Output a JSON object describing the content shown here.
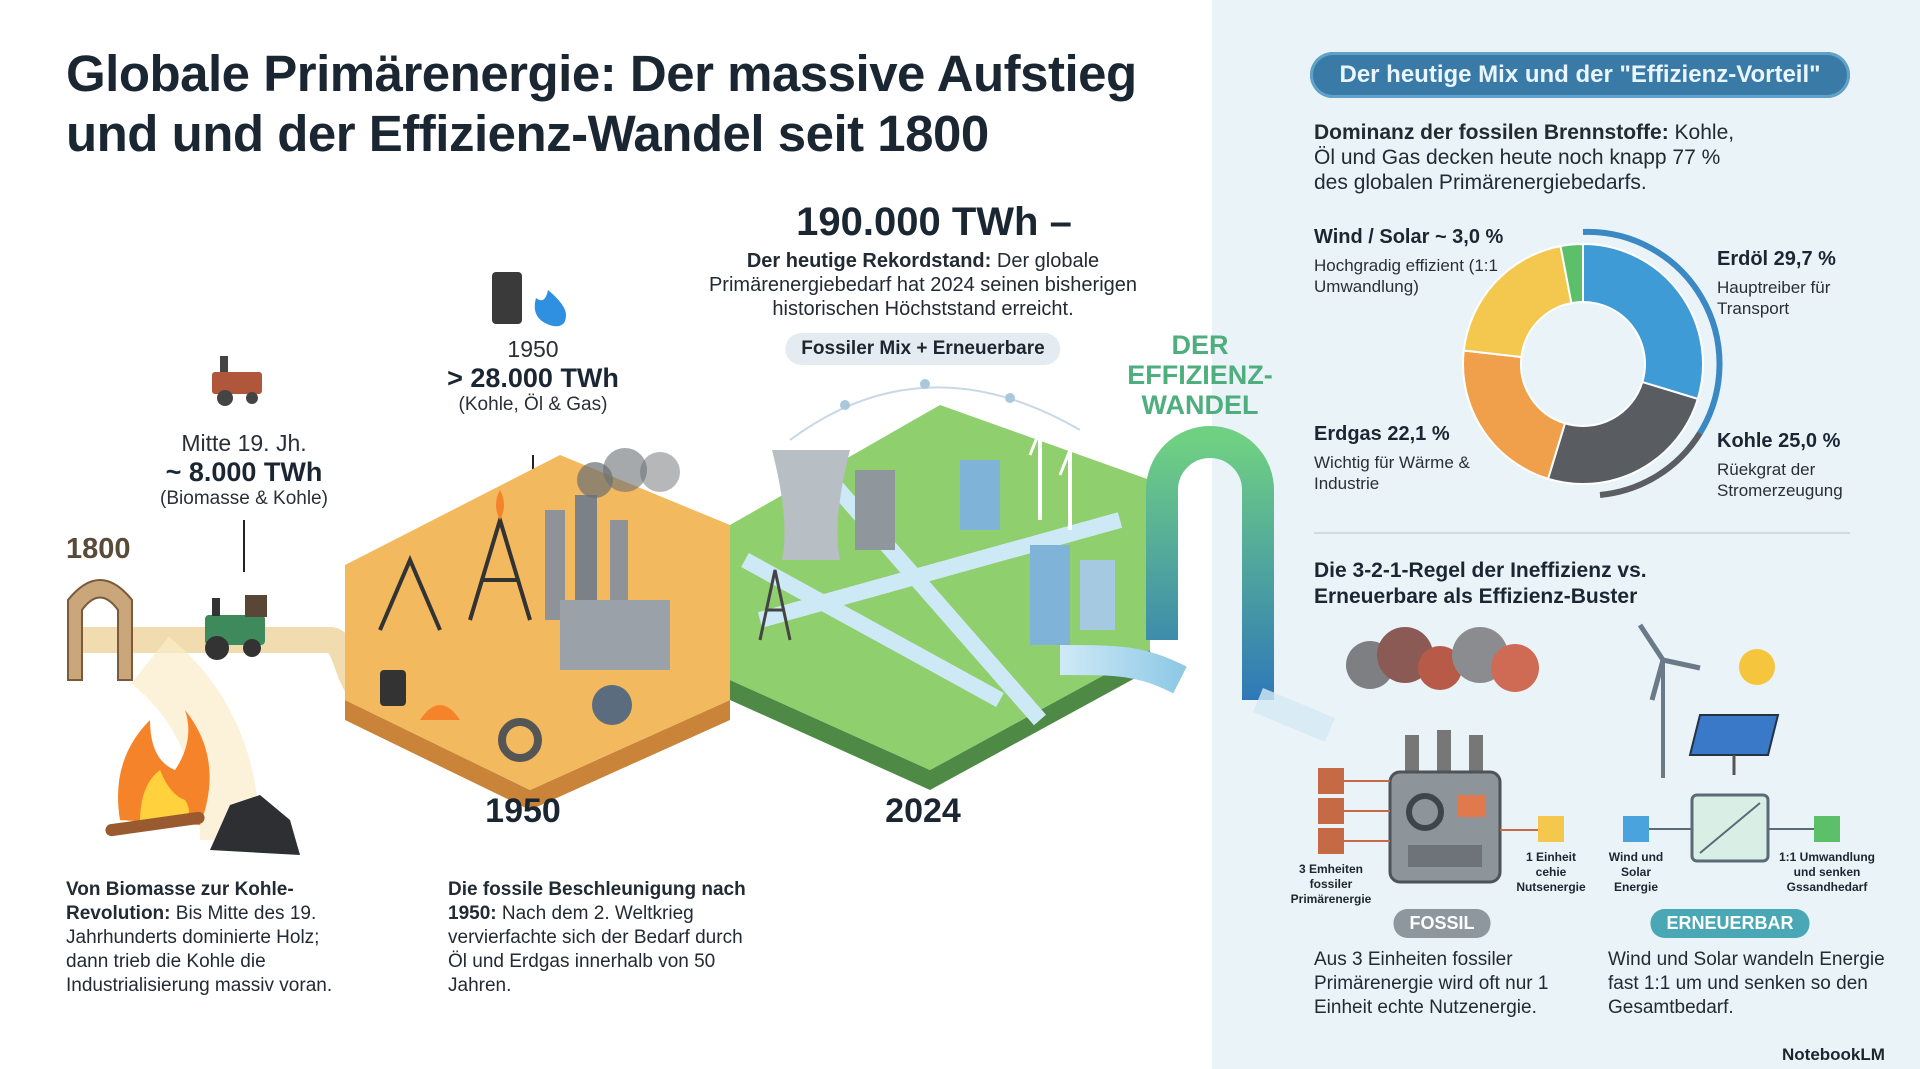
{
  "header": {
    "title_lines": [
      "Globale Primärenergie: Der massive Aufstieg",
      "und und der Effizienz-Wandel seit 1800"
    ]
  },
  "timeline": {
    "start_year": "1800",
    "milestones": [
      {
        "period": "Mitte 19. Jh.",
        "amount": "~ 8.000 TWh",
        "sources": "(Biomasse & Kohle)"
      },
      {
        "period": "1950",
        "amount": "> 28.000 TWh",
        "sources": "(Kohle, Öl & Gas)"
      }
    ],
    "record": {
      "amount": "190.000 TWh –",
      "lead": "Der heutige Rekordstand:",
      "text": "Der globale Primärenergiebedarf hat 2024 seinen bisherigen historischen Höchststand erreicht.",
      "badge": "Fossiler Mix + Erneuerbare"
    },
    "transition_lines": [
      "DER",
      "EFFIZIENZ-",
      "WANDEL"
    ],
    "era_labels": [
      "1950",
      "2024"
    ],
    "captions": [
      {
        "lead": "Von Biomasse zur Kohle-Revolution:",
        "text": "Bis Mitte des 19. Jahrhunderts dominierte Holz; dann trieb die Kohle die Industrialisierung massiv voran."
      },
      {
        "lead": "Die fossile Beschleunigung nach 1950:",
        "text": "Nach dem 2. Weltkrieg vervierfachte sich der Bedarf durch Öl und Erdgas innerhalb von 50 Jahren."
      }
    ]
  },
  "mix": {
    "badge": "Der heutige Mix und der \"Effizienz-Vorteil\"",
    "intro": {
      "lead": "Dominanz der fossilen Brennstoffe:",
      "text": "Kohle, Öl und Gas decken heute noch knapp 77 % des globalen Primärenergiebedarfs."
    },
    "donut": {
      "segments": [
        {
          "label": "Erdöl 29,7 %",
          "value": 29.7,
          "note": "Hauptreiber für Transport",
          "color": "#3f9bd6"
        },
        {
          "label": "Kohle 25,0 %",
          "value": 25.0,
          "note": "Rüekgrat der Stromerzeugung",
          "color": "#595d61"
        },
        {
          "label": "Erdgas 22,1 %",
          "value": 22.1,
          "note": "Wichtig für Wärme & Industrie",
          "color": "#f0a04b"
        },
        {
          "value": 20.2,
          "color": "#f4c74f"
        },
        {
          "label": "Wind / Solar ~ 3,0 %",
          "value": 3.0,
          "note": "Hochgradig effizient (1:1 Umwandlung)",
          "color": "#5cbf6a"
        }
      ]
    }
  },
  "rule": {
    "heading": "Die 3-2-1-Regel der Ineffizienz vs. Erneuerbare als Effizienz-Buster",
    "fossil": {
      "input": "3 Emheiten fossiler Primärenergie",
      "output": "1 Einheit cehie Nutsenergie",
      "badge": "FOSSIL",
      "text": "Aus 3 Einheiten fossiler Primärenergie wird oft nur 1 Einheit echte Nutzenergie."
    },
    "renewable": {
      "input": "Wind und Solar Energie",
      "output": "1:1 Umwandlung und senken Gssandhedarf",
      "badge": "ERNEUERBAR",
      "text": "Wind und Solar wandeln Energie fast 1:1 um und senken so den Gesamtbedarf."
    }
  },
  "footer": {
    "brand": "NotebookLM"
  }
}
